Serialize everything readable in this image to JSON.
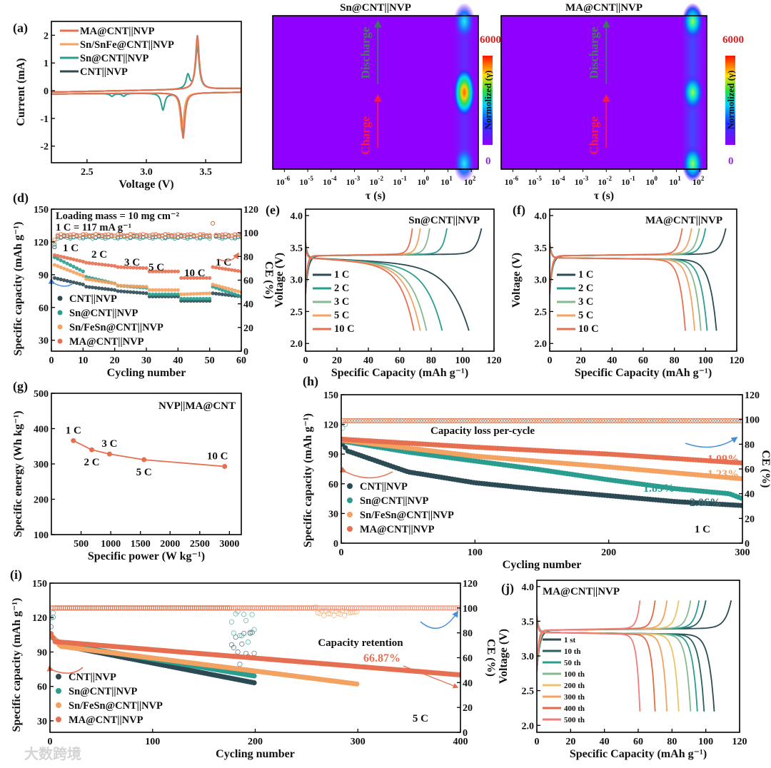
{
  "watermark": "大数跨境",
  "chart_data": [
    {
      "id": "a",
      "kind": "cv",
      "type": "line",
      "panel_label": "(a)",
      "xlabel": "Voltage (V)",
      "ylabel": "Current (mA)",
      "xlim": [
        2.2,
        3.8
      ],
      "ylim": [
        -2.6,
        2.5
      ],
      "xticks": [
        "2.5",
        "3.0",
        "3.5"
      ],
      "yticks": [
        "-2",
        "-1",
        "0",
        "1",
        "2"
      ],
      "series": [
        {
          "name": "MA@CNT||NVP",
          "color": "#e76f51",
          "ox_peaks": [
            [
              3.43,
              1.95
            ]
          ],
          "red_peaks": [
            [
              3.31,
              -1.65
            ]
          ]
        },
        {
          "name": "Sn/SnFe@CNT||NVP",
          "color": "#f4a261",
          "ox_peaks": [
            [
              3.43,
              1.8
            ]
          ],
          "red_peaks": [
            [
              3.3,
              -1.4
            ]
          ]
        },
        {
          "name": "Sn@CNT||NVP",
          "color": "#2a9d8f",
          "ox_peaks": [
            [
              3.35,
              0.5
            ],
            [
              3.43,
              1.5
            ]
          ],
          "red_peaks": [
            [
              2.71,
              -0.1
            ],
            [
              2.81,
              -0.1
            ],
            [
              3.14,
              -0.6
            ],
            [
              3.31,
              -1.45
            ]
          ]
        },
        {
          "name": "CNT||NVP",
          "color": "#2c4a54",
          "ox_peaks": [
            [
              3.43,
              1.8
            ]
          ],
          "red_peaks": [
            [
              3.31,
              -1.5
            ]
          ]
        }
      ]
    },
    {
      "id": "b",
      "kind": "heatmap",
      "type": "heatmap",
      "panel_label": "(b)",
      "title": "Sn@CNT||NVP",
      "xlabel": "τ (s)",
      "xlog": true,
      "xlim_log10": [
        -6.5,
        2.3
      ],
      "xticks_log10": [
        -6,
        -5,
        -4,
        -3,
        -2,
        -1,
        0,
        1,
        2
      ],
      "charge_label": "Charge",
      "discharge_label": "Discharge",
      "colorbar": {
        "label": "Normolized (γ)",
        "max": "6000",
        "min": "0"
      },
      "features": [
        {
          "log_tau": 1.7,
          "state": 0.0,
          "intensity": 0.35
        },
        {
          "log_tau": 1.7,
          "state": 0.5,
          "intensity": 1.0
        },
        {
          "log_tau": 1.7,
          "state": 1.0,
          "intensity": 0.35
        }
      ]
    },
    {
      "id": "c",
      "kind": "heatmap",
      "type": "heatmap",
      "panel_label": "(c)",
      "title": "MA@CNT||NVP",
      "xlabel": "τ (s)",
      "xlog": true,
      "xlim_log10": [
        -6.5,
        2.3
      ],
      "xticks_log10": [
        -6,
        -5,
        -4,
        -3,
        -2,
        -1,
        0,
        1,
        2
      ],
      "charge_label": "Charge",
      "discharge_label": "Discharge",
      "colorbar": {
        "label": "Normolized (γ)",
        "max": "6000",
        "min": "0"
      },
      "features": [
        {
          "log_tau": 1.7,
          "state": 0.0,
          "intensity": 0.55
        },
        {
          "log_tau": 1.7,
          "state": 0.5,
          "intensity": 0.55
        },
        {
          "log_tau": 1.7,
          "state": 1.0,
          "intensity": 0.55
        }
      ]
    },
    {
      "id": "d",
      "kind": "rate",
      "type": "scatter",
      "panel_label": "(d)",
      "xlabel": "Cycling number",
      "ylabel": "Specific capacity (mAh g⁻¹)",
      "y2label": "CE (%)",
      "xlim": [
        0,
        60
      ],
      "ylim": [
        20,
        150
      ],
      "y2lim": [
        0,
        120
      ],
      "xticks": [
        "0",
        "10",
        "20",
        "30",
        "40",
        "50",
        "60"
      ],
      "yticks": [
        "30",
        "60",
        "90",
        "120",
        "150"
      ],
      "y2ticks": [
        "0",
        "20",
        "40",
        "60",
        "80",
        "100",
        "120"
      ],
      "notes": [
        "Loading mass = 10 mg cm⁻²",
        "1 C = 117 mA g⁻¹"
      ],
      "rates": [
        "1 C",
        "2 C",
        "3 C",
        "5 C",
        "10 C",
        "1 C"
      ],
      "series": [
        {
          "name": "CNT||NVP",
          "color": "#2c4a54",
          "segments": [
            [
              87,
              81
            ],
            [
              79,
              76
            ],
            [
              75,
              73
            ],
            [
              70,
              70
            ],
            [
              66,
              66
            ],
            [
              73,
              70
            ]
          ],
          "ce": 97
        },
        {
          "name": "Sn@CNT||NVP",
          "color": "#2a9d8f",
          "segments": [
            [
              106,
              93
            ],
            [
              88,
              82
            ],
            [
              80,
              78
            ],
            [
              72,
              72
            ],
            [
              68,
              68
            ],
            [
              79,
              70
            ]
          ],
          "ce": 96
        },
        {
          "name": "Sn/FeSn@CNT||NVP",
          "color": "#f4a261",
          "segments": [
            [
              99,
              89
            ],
            [
              86,
              82
            ],
            [
              80,
              79
            ],
            [
              76,
              76
            ],
            [
              72,
              73
            ],
            [
              81,
              74
            ]
          ],
          "ce": 98
        },
        {
          "name": "MA@CNT||NVP",
          "color": "#e76f51",
          "segments": [
            [
              108,
              102
            ],
            [
              101,
              98
            ],
            [
              97,
              96
            ],
            [
              93,
              93
            ],
            [
              87,
              87
            ],
            [
              97,
              93
            ]
          ],
          "ce": 98
        }
      ]
    },
    {
      "id": "e",
      "kind": "profile",
      "type": "line",
      "panel_label": "(e)",
      "title": "Sn@CNT||NVP",
      "xlabel": "Specific Capacity (mAh g⁻¹)",
      "ylabel": "Voltage (V)",
      "xlim": [
        0,
        120
      ],
      "ylim": [
        1.88,
        4.1
      ],
      "xticks": [
        "0",
        "20",
        "40",
        "60",
        "80",
        "100",
        "120"
      ],
      "yticks": [
        "2.0",
        "2.5",
        "3.0",
        "3.5",
        "4.0"
      ],
      "knee": 0.12,
      "series": [
        {
          "name": "1 C",
          "color": "#2c4a54",
          "charge_end": 112,
          "discharge_end": 104
        },
        {
          "name": "2 C",
          "color": "#2a9d8f",
          "charge_end": 90,
          "discharge_end": 87
        },
        {
          "name": "3 C",
          "color": "#86b98e",
          "charge_end": 79,
          "discharge_end": 77
        },
        {
          "name": "5 C",
          "color": "#f4a261",
          "charge_end": 73,
          "discharge_end": 73
        },
        {
          "name": "10 C",
          "color": "#e76f51",
          "charge_end": 68,
          "discharge_end": 69
        }
      ]
    },
    {
      "id": "f",
      "kind": "profile",
      "type": "line",
      "panel_label": "(f)",
      "title": "MA@CNT||NVP",
      "xlabel": "Specific Capacity (mAh g⁻¹)",
      "ylabel": "Voltage (V)",
      "xlim": [
        0,
        120
      ],
      "ylim": [
        1.88,
        4.1
      ],
      "xticks": [
        "0",
        "20",
        "40",
        "60",
        "80",
        "100",
        "120"
      ],
      "yticks": [
        "2.0",
        "2.5",
        "3.0",
        "3.5",
        "4.0"
      ],
      "knee": 0.04,
      "series": [
        {
          "name": "1 C",
          "color": "#2c4a54",
          "charge_end": 113,
          "discharge_end": 107
        },
        {
          "name": "2 C",
          "color": "#2a9d8f",
          "charge_end": 100,
          "discharge_end": 101
        },
        {
          "name": "3 C",
          "color": "#86b98e",
          "charge_end": 96,
          "discharge_end": 97
        },
        {
          "name": "5 C",
          "color": "#f4a261",
          "charge_end": 91,
          "discharge_end": 93
        },
        {
          "name": "10 C",
          "color": "#e76f51",
          "charge_end": 85,
          "discharge_end": 87
        }
      ]
    },
    {
      "id": "g",
      "kind": "ragone",
      "type": "line",
      "panel_label": "(g)",
      "title": "NVP||MA@CNT",
      "xlabel": "Specific power (W kg⁻¹)",
      "ylabel": "Specific energy (Wh kg⁻¹)",
      "xlim": [
        0,
        3200
      ],
      "ylim": [
        100,
        500
      ],
      "xticks": [
        "500",
        "1000",
        "1500",
        "2000",
        "2500",
        "3000"
      ],
      "yticks": [
        "100",
        "200",
        "300",
        "400",
        "500"
      ],
      "color": "#e76f51",
      "points": [
        {
          "label": "1 C",
          "x": 370,
          "y": 366
        },
        {
          "label": "2 C",
          "x": 680,
          "y": 340
        },
        {
          "label": "3 C",
          "x": 980,
          "y": 328
        },
        {
          "label": "5 C",
          "x": 1560,
          "y": 312
        },
        {
          "label": "10 C",
          "x": 2920,
          "y": 293
        }
      ]
    },
    {
      "id": "h",
      "kind": "cycling",
      "type": "scatter",
      "panel_label": "(h)",
      "xlabel": "Cycling number",
      "ylabel": "Specific capacity (mAh g⁻¹)",
      "y2label": "CE (%)",
      "xlim": [
        0,
        300
      ],
      "ylim": [
        0,
        150
      ],
      "y2lim": [
        0,
        120
      ],
      "xticks": [
        "0",
        "100",
        "200",
        "300"
      ],
      "yticks": [
        "0",
        "30",
        "60",
        "90",
        "120",
        "150"
      ],
      "y2ticks": [
        "0",
        "20",
        "40",
        "60",
        "80",
        "100",
        "120"
      ],
      "heading": "Capacity loss per-cycle",
      "rate": "1 C",
      "series": [
        {
          "name": "CNT||NVP",
          "color": "#2c4a54",
          "cycles": 300,
          "capacity": [
            [
              1,
              100
            ],
            [
              5,
              93
            ],
            [
              50,
              72
            ],
            [
              100,
              61
            ],
            [
              150,
              54
            ],
            [
              200,
              48
            ],
            [
              250,
              42
            ],
            [
              300,
              38
            ]
          ],
          "loss": "2.06%",
          "ce": [
            [
              1,
              99
            ],
            [
              300,
              99
            ]
          ]
        },
        {
          "name": "Sn@CNT||NVP",
          "color": "#2a9d8f",
          "cycles": 300,
          "capacity": [
            [
              1,
              103
            ],
            [
              50,
              92
            ],
            [
              100,
              83
            ],
            [
              150,
              74
            ],
            [
              200,
              64
            ],
            [
              250,
              55
            ],
            [
              290,
              50
            ],
            [
              300,
              45
            ]
          ],
          "loss": "1.89%",
          "ce": [
            [
              1,
              93
            ],
            [
              5,
              99
            ],
            [
              300,
              99
            ]
          ]
        },
        {
          "name": "Sn/FeSn@CNT||NVP",
          "color": "#f4a261",
          "cycles": 300,
          "capacity": [
            [
              1,
              104
            ],
            [
              100,
              88
            ],
            [
              200,
              77
            ],
            [
              300,
              65
            ]
          ],
          "loss": "1.23%",
          "ce": [
            [
              1,
              99
            ],
            [
              300,
              99
            ]
          ]
        },
        {
          "name": "MA@CNT||NVP",
          "color": "#e76f51",
          "cycles": 300,
          "capacity": [
            [
              1,
              105
            ],
            [
              100,
              97
            ],
            [
              200,
              90
            ],
            [
              300,
              81
            ]
          ],
          "loss": "1.09%",
          "ce": [
            [
              1,
              99
            ],
            [
              300,
              99
            ]
          ]
        }
      ]
    },
    {
      "id": "i",
      "kind": "cycling",
      "type": "scatter",
      "panel_label": "(i)",
      "xlabel": "Cycling number",
      "ylabel": "Specific capacity (mAh g⁻¹)",
      "y2label": "CE (%)",
      "xlim": [
        0,
        400
      ],
      "ylim": [
        20,
        150
      ],
      "y2lim": [
        0,
        120
      ],
      "xticks": [
        "0",
        "100",
        "200",
        "300",
        "400"
      ],
      "yticks": [
        "30",
        "60",
        "90",
        "120",
        "150"
      ],
      "y2ticks": [
        "0",
        "20",
        "40",
        "60",
        "80",
        "100",
        "120"
      ],
      "heading": "Capacity retention",
      "retention": "66.87%",
      "rate": "5 C",
      "series": [
        {
          "name": "CNT||NVP",
          "color": "#2c4a54",
          "cycles": 200,
          "capacity": [
            [
              1,
              104
            ],
            [
              10,
              96
            ],
            [
              200,
              63
            ]
          ],
          "ce": [
            [
              1,
              85
            ],
            [
              5,
              100
            ],
            [
              175,
              100
            ],
            [
              180,
              70
            ],
            [
              190,
              75
            ],
            [
              200,
              80
            ]
          ]
        },
        {
          "name": "Sn@CNT||NVP",
          "color": "#2a9d8f",
          "cycles": 200,
          "capacity": [
            [
              1,
              104
            ],
            [
              10,
              97
            ],
            [
              200,
              69
            ]
          ],
          "ce": [
            [
              1,
              92
            ],
            [
              5,
              100
            ],
            [
              175,
              100
            ],
            [
              185,
              92
            ],
            [
              200,
              88
            ]
          ]
        },
        {
          "name": "Sn/FeSn@CNT||NVP",
          "color": "#f4a261",
          "cycles": 300,
          "capacity": [
            [
              1,
              105
            ],
            [
              10,
              95
            ],
            [
              300,
              62
            ]
          ],
          "ce": [
            [
              1,
              100
            ],
            [
              258,
              100
            ],
            [
              262,
              96
            ],
            [
              290,
              96
            ],
            [
              300,
              97
            ]
          ]
        },
        {
          "name": "MA@CNT||NVP",
          "color": "#e76f51",
          "cycles": 400,
          "capacity": [
            [
              1,
              106
            ],
            [
              5,
              99
            ],
            [
              400,
              70
            ]
          ],
          "ce": [
            [
              1,
              100
            ],
            [
              400,
              100
            ]
          ]
        }
      ]
    },
    {
      "id": "j",
      "kind": "profile",
      "type": "line",
      "panel_label": "(j)",
      "title": "MA@CNT||NVP",
      "xlabel": "Specific Capacity (mAh g⁻¹)",
      "ylabel": "Voltage (V)",
      "xlim": [
        0,
        120
      ],
      "ylim": [
        1.9,
        4.09
      ],
      "xticks": [
        "0",
        "20",
        "40",
        "60",
        "80",
        "100",
        "120"
      ],
      "yticks": [
        "2.0",
        "2.5",
        "3.0",
        "3.5",
        "4.0"
      ],
      "knee": 0.03,
      "series": [
        {
          "name": "1 st",
          "color": "#2e4a53",
          "charge_end": 115,
          "discharge_end": 105
        },
        {
          "name": "10 th",
          "color": "#28625e",
          "charge_end": 100,
          "discharge_end": 99
        },
        {
          "name": "50 th",
          "color": "#2a9d8f",
          "charge_end": 96,
          "discharge_end": 95
        },
        {
          "name": "100 th",
          "color": "#86b98e",
          "charge_end": 91,
          "discharge_end": 91
        },
        {
          "name": "200 th",
          "color": "#e9c46a",
          "charge_end": 84,
          "discharge_end": 84
        },
        {
          "name": "300 th",
          "color": "#f4a261",
          "charge_end": 77,
          "discharge_end": 77
        },
        {
          "name": "400 th",
          "color": "#e06a4a",
          "charge_end": 70,
          "discharge_end": 70
        },
        {
          "name": "500 th",
          "color": "#f27c7c",
          "charge_end": 61,
          "discharge_end": 61
        }
      ]
    }
  ]
}
